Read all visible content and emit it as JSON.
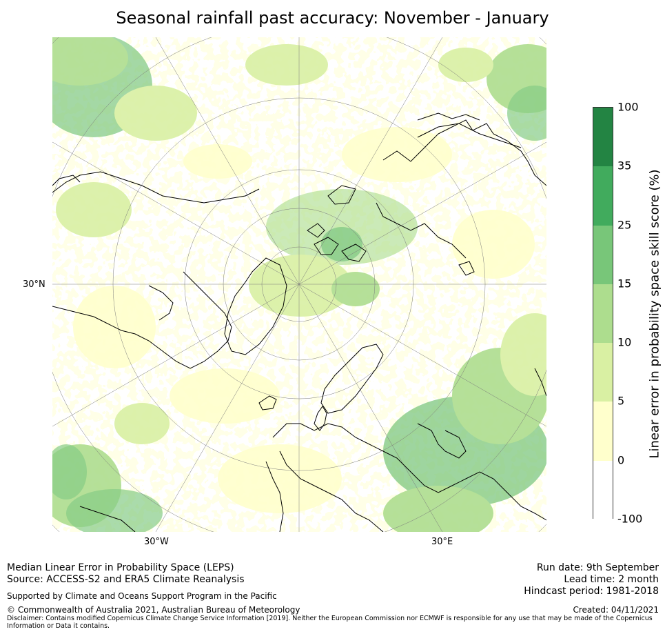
{
  "title": "Seasonal rainfall past accuracy: November - January",
  "map": {
    "projection": "north-polar-stereographic",
    "labels": {
      "lat_30n": "30°N",
      "lon_30w": "30°W",
      "lon_30e": "30°E"
    },
    "colors": {
      "land_line": "#000000",
      "graticule": "#7a7a7a",
      "ocean_bg": "#ffffff"
    }
  },
  "colorbar": {
    "title": "Linear error in probability space skill score (%)",
    "ticks": [
      "100",
      "35",
      "25",
      "15",
      "10",
      "5",
      "0",
      "-100"
    ],
    "bins": [
      {
        "range": "35 to 100",
        "color": "#238443"
      },
      {
        "range": "25 to 35",
        "color": "#41ab5d"
      },
      {
        "range": "15 to 25",
        "color": "#78c679"
      },
      {
        "range": "10 to 15",
        "color": "#addd8e"
      },
      {
        "range": "5 to 10",
        "color": "#d9f0a3"
      },
      {
        "range": "0 to 5",
        "color": "#ffffcc"
      },
      {
        "range": "-100 to 0",
        "color": "#ffffff"
      }
    ]
  },
  "footer": {
    "left_line1": "Median Linear Error in Probability Space (LEPS)",
    "left_line2": "Source: ACCESS-S2 and ERA5 Climate Reanalysis",
    "supported": "Supported by Climate and Oceans Support Program in the Pacific",
    "copyright": "© Commonwealth of Australia 2021, Australian Bureau of Meteorology",
    "disclaimer": "Disclaimer: Contains modified Copernicus Climate Change Service Information [2019]. Neither the European Commission nor ECMWF is responsible for any use that may be made of the Copernicus Information or Data it contains.",
    "run_date": "Run date: 9th September",
    "lead_time": "Lead time: 2 month",
    "hindcast": "Hindcast period: 1981-2018",
    "created": "Created: 04/11/2021"
  }
}
